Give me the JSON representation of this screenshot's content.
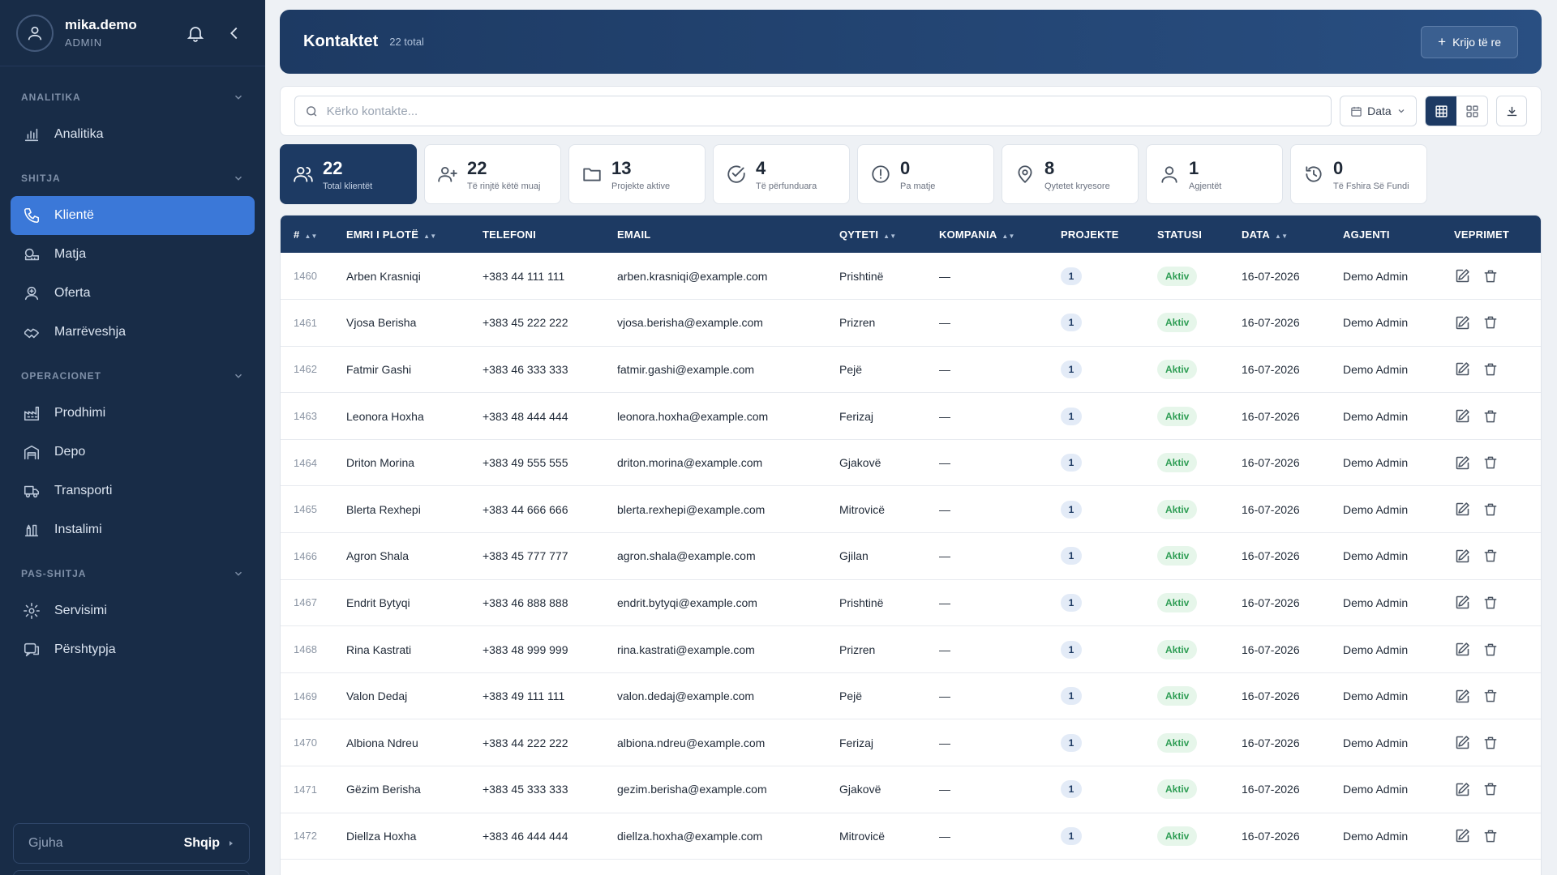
{
  "user": {
    "name": "mika.demo",
    "role": "ADMIN"
  },
  "sidebar": {
    "sections": [
      {
        "title": "ANALITIKA",
        "items": [
          {
            "label": "Analitika",
            "icon": "chart-bar-icon"
          }
        ]
      },
      {
        "title": "SHITJA",
        "items": [
          {
            "label": "Klientë",
            "icon": "phone-icon",
            "active": true
          },
          {
            "label": "Matja",
            "icon": "measure-icon"
          },
          {
            "label": "Oferta",
            "icon": "offer-icon"
          },
          {
            "label": "Marrëveshja",
            "icon": "handshake-icon"
          }
        ]
      },
      {
        "title": "OPERACIONET",
        "items": [
          {
            "label": "Prodhimi",
            "icon": "factory-icon"
          },
          {
            "label": "Depo",
            "icon": "warehouse-icon"
          },
          {
            "label": "Transporti",
            "icon": "truck-icon"
          },
          {
            "label": "Instalimi",
            "icon": "tools-icon"
          }
        ]
      },
      {
        "title": "PAS-SHITJA",
        "items": [
          {
            "label": "Servisimi",
            "icon": "gear-icon"
          },
          {
            "label": "Përshtypja",
            "icon": "feedback-icon"
          }
        ]
      }
    ],
    "language": {
      "label": "Gjuha",
      "value": "Shqip"
    }
  },
  "header": {
    "title": "Kontaktet",
    "count": "22 total",
    "create_label": "Krijo të re"
  },
  "toolbar": {
    "search_placeholder": "Kërko kontakte...",
    "date_label": "Data"
  },
  "stats": [
    {
      "value": "22",
      "label": "Total klientët",
      "icon": "users-icon",
      "active": true
    },
    {
      "value": "22",
      "label": "Të rinjtë këtë muaj",
      "icon": "user-plus-icon"
    },
    {
      "value": "13",
      "label": "Projekte aktive",
      "icon": "folder-icon"
    },
    {
      "value": "4",
      "label": "Të përfunduara",
      "icon": "check-circle-icon"
    },
    {
      "value": "0",
      "label": "Pa matje",
      "icon": "alert-circle-icon"
    },
    {
      "value": "8",
      "label": "Qytetet kryesore",
      "icon": "map-pin-icon"
    },
    {
      "value": "1",
      "label": "Agjentët",
      "icon": "user-icon"
    },
    {
      "value": "0",
      "label": "Të Fshira Së Fundi",
      "icon": "restore-icon"
    }
  ],
  "table": {
    "columns": [
      "#",
      "EMRI I PLOTË",
      "TELEFONI",
      "EMAIL",
      "QYTETI",
      "KOMPANIA",
      "PROJEKTE",
      "STATUSI",
      "DATA",
      "AGJENTI",
      "VEPRIMET"
    ],
    "rows": [
      {
        "id": "1460",
        "name": "Arben Krasniqi",
        "phone": "+383 44 111 111",
        "email": "arben.krasniqi@example.com",
        "city": "Prishtinë",
        "company": "—",
        "projects": "1",
        "status": "Aktiv",
        "date": "16-07-2026",
        "agent": "Demo Admin"
      },
      {
        "id": "1461",
        "name": "Vjosa Berisha",
        "phone": "+383 45 222 222",
        "email": "vjosa.berisha@example.com",
        "city": "Prizren",
        "company": "—",
        "projects": "1",
        "status": "Aktiv",
        "date": "16-07-2026",
        "agent": "Demo Admin"
      },
      {
        "id": "1462",
        "name": "Fatmir Gashi",
        "phone": "+383 46 333 333",
        "email": "fatmir.gashi@example.com",
        "city": "Pejë",
        "company": "—",
        "projects": "1",
        "status": "Aktiv",
        "date": "16-07-2026",
        "agent": "Demo Admin"
      },
      {
        "id": "1463",
        "name": "Leonora Hoxha",
        "phone": "+383 48 444 444",
        "email": "leonora.hoxha@example.com",
        "city": "Ferizaj",
        "company": "—",
        "projects": "1",
        "status": "Aktiv",
        "date": "16-07-2026",
        "agent": "Demo Admin"
      },
      {
        "id": "1464",
        "name": "Driton Morina",
        "phone": "+383 49 555 555",
        "email": "driton.morina@example.com",
        "city": "Gjakovë",
        "company": "—",
        "projects": "1",
        "status": "Aktiv",
        "date": "16-07-2026",
        "agent": "Demo Admin"
      },
      {
        "id": "1465",
        "name": "Blerta Rexhepi",
        "phone": "+383 44 666 666",
        "email": "blerta.rexhepi@example.com",
        "city": "Mitrovicë",
        "company": "—",
        "projects": "1",
        "status": "Aktiv",
        "date": "16-07-2026",
        "agent": "Demo Admin"
      },
      {
        "id": "1466",
        "name": "Agron Shala",
        "phone": "+383 45 777 777",
        "email": "agron.shala@example.com",
        "city": "Gjilan",
        "company": "—",
        "projects": "1",
        "status": "Aktiv",
        "date": "16-07-2026",
        "agent": "Demo Admin"
      },
      {
        "id": "1467",
        "name": "Endrit Bytyqi",
        "phone": "+383 46 888 888",
        "email": "endrit.bytyqi@example.com",
        "city": "Prishtinë",
        "company": "—",
        "projects": "1",
        "status": "Aktiv",
        "date": "16-07-2026",
        "agent": "Demo Admin"
      },
      {
        "id": "1468",
        "name": "Rina Kastrati",
        "phone": "+383 48 999 999",
        "email": "rina.kastrati@example.com",
        "city": "Prizren",
        "company": "—",
        "projects": "1",
        "status": "Aktiv",
        "date": "16-07-2026",
        "agent": "Demo Admin"
      },
      {
        "id": "1469",
        "name": "Valon Dedaj",
        "phone": "+383 49 111 111",
        "email": "valon.dedaj@example.com",
        "city": "Pejë",
        "company": "—",
        "projects": "1",
        "status": "Aktiv",
        "date": "16-07-2026",
        "agent": "Demo Admin"
      },
      {
        "id": "1470",
        "name": "Albiona Ndreu",
        "phone": "+383 44 222 222",
        "email": "albiona.ndreu@example.com",
        "city": "Ferizaj",
        "company": "—",
        "projects": "1",
        "status": "Aktiv",
        "date": "16-07-2026",
        "agent": "Demo Admin"
      },
      {
        "id": "1471",
        "name": "Gëzim Berisha",
        "phone": "+383 45 333 333",
        "email": "gezim.berisha@example.com",
        "city": "Gjakovë",
        "company": "—",
        "projects": "1",
        "status": "Aktiv",
        "date": "16-07-2026",
        "agent": "Demo Admin"
      },
      {
        "id": "1472",
        "name": "Diellza Hoxha",
        "phone": "+383 46 444 444",
        "email": "diellza.hoxha@example.com",
        "city": "Mitrovicë",
        "company": "—",
        "projects": "1",
        "status": "Aktiv",
        "date": "16-07-2026",
        "agent": "Demo Admin"
      }
    ]
  },
  "colors": {
    "sidebar_bg": "#182c47",
    "accent": "#3b78d8",
    "header_bg": "#1d3a63",
    "status_green": "#2f9e55"
  }
}
